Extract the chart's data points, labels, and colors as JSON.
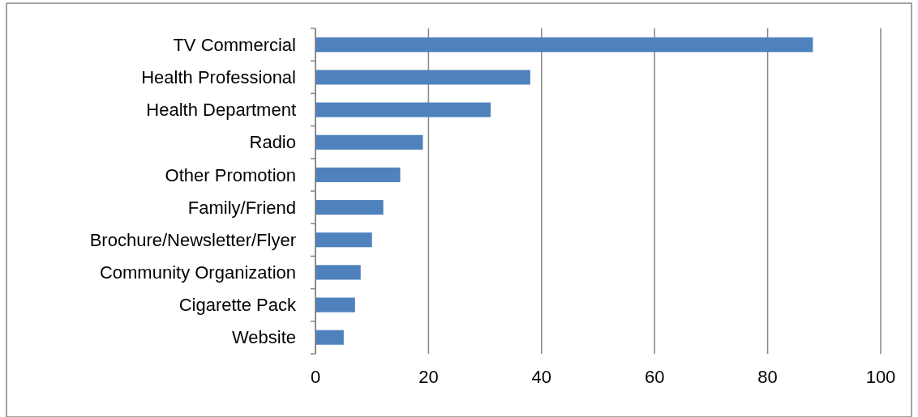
{
  "chart_data": {
    "type": "bar",
    "orientation": "horizontal",
    "categories": [
      "TV Commercial",
      "Health Professional",
      "Health Department",
      "Radio",
      "Other Promotion",
      "Family/Friend",
      "Brochure/Newsletter/Flyer",
      "Community Organization",
      "Cigarette Pack",
      "Website"
    ],
    "values": [
      88,
      38,
      31,
      19,
      15,
      12,
      10,
      8,
      7,
      5
    ],
    "color": "#4f81bd",
    "xlim": [
      0,
      100
    ],
    "xticks": [
      0,
      20,
      40,
      60,
      80,
      100
    ],
    "grid": "x"
  }
}
